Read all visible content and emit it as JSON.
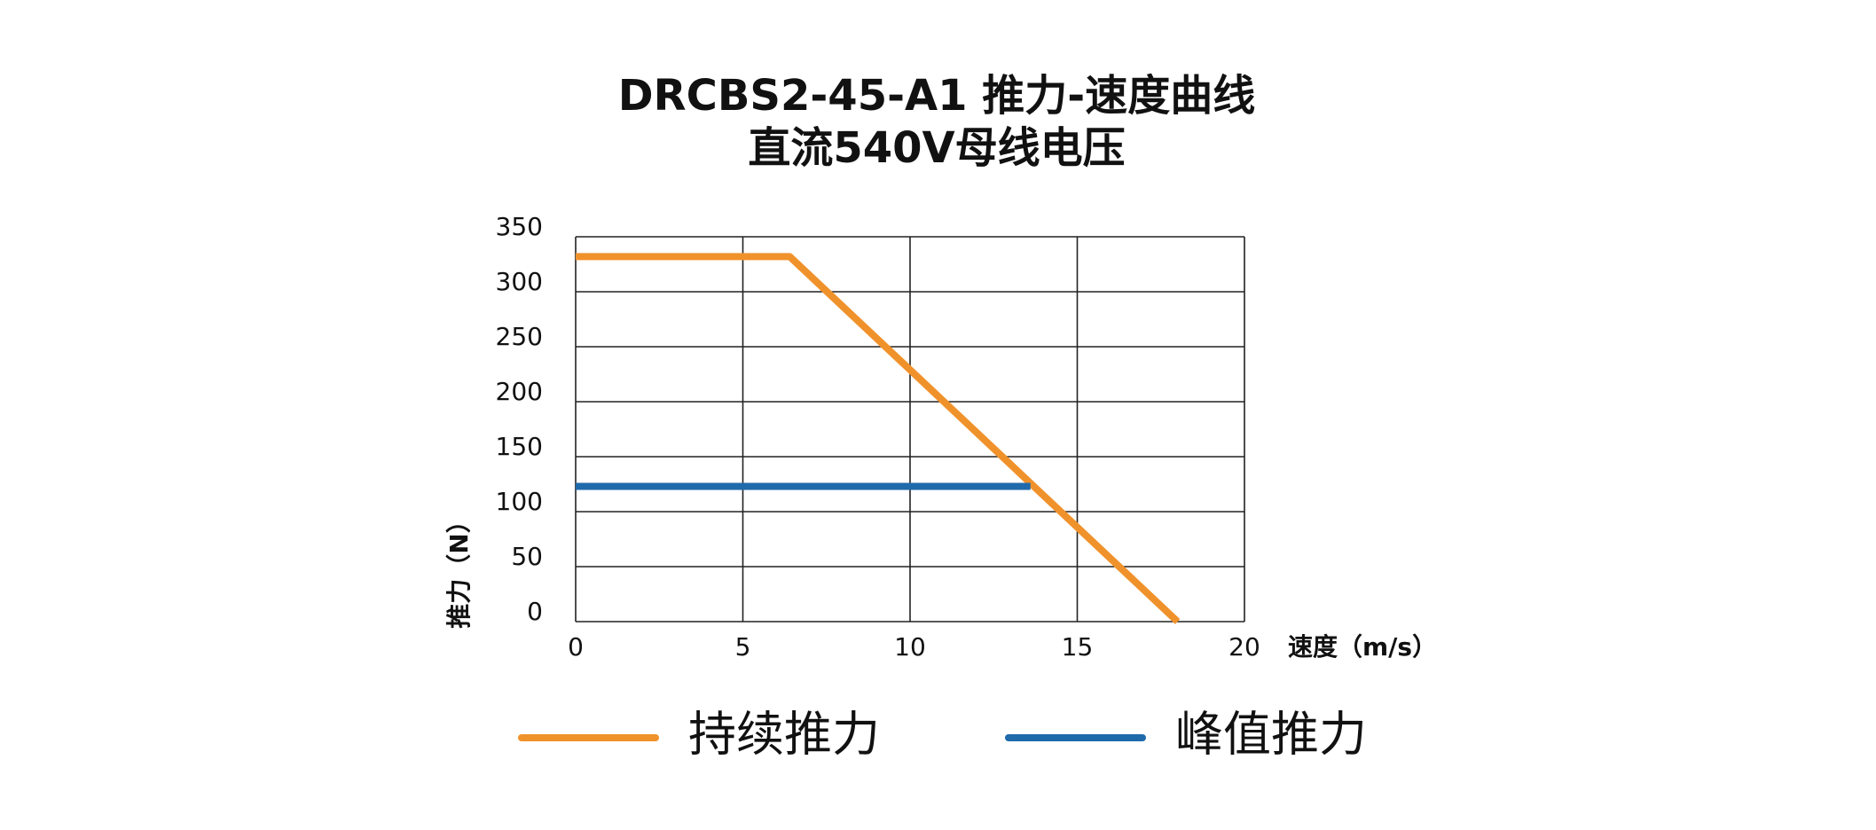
{
  "chart_data": {
    "type": "line",
    "title": "DRCBS2-45-A1 推力-速度曲线",
    "subtitle": "直流540V母线电压",
    "x_label": "速度（m/s）",
    "y_label": "推力（N）",
    "xlim": [
      0,
      20
    ],
    "xticks": [
      0,
      5,
      10,
      15,
      20
    ],
    "ylim": [
      0,
      350
    ],
    "yticks": [
      0,
      50,
      100,
      150,
      200,
      250,
      300,
      350
    ],
    "grid": true,
    "series": [
      {
        "name": "持续推力",
        "color": "#f0922b",
        "x": [
          0,
          6.4,
          18
        ],
        "values": [
          332,
          332,
          0
        ]
      },
      {
        "name": "峰值推力",
        "color": "#1f6aab",
        "x": [
          0,
          13.6
        ],
        "values": [
          123,
          123
        ]
      }
    ]
  }
}
